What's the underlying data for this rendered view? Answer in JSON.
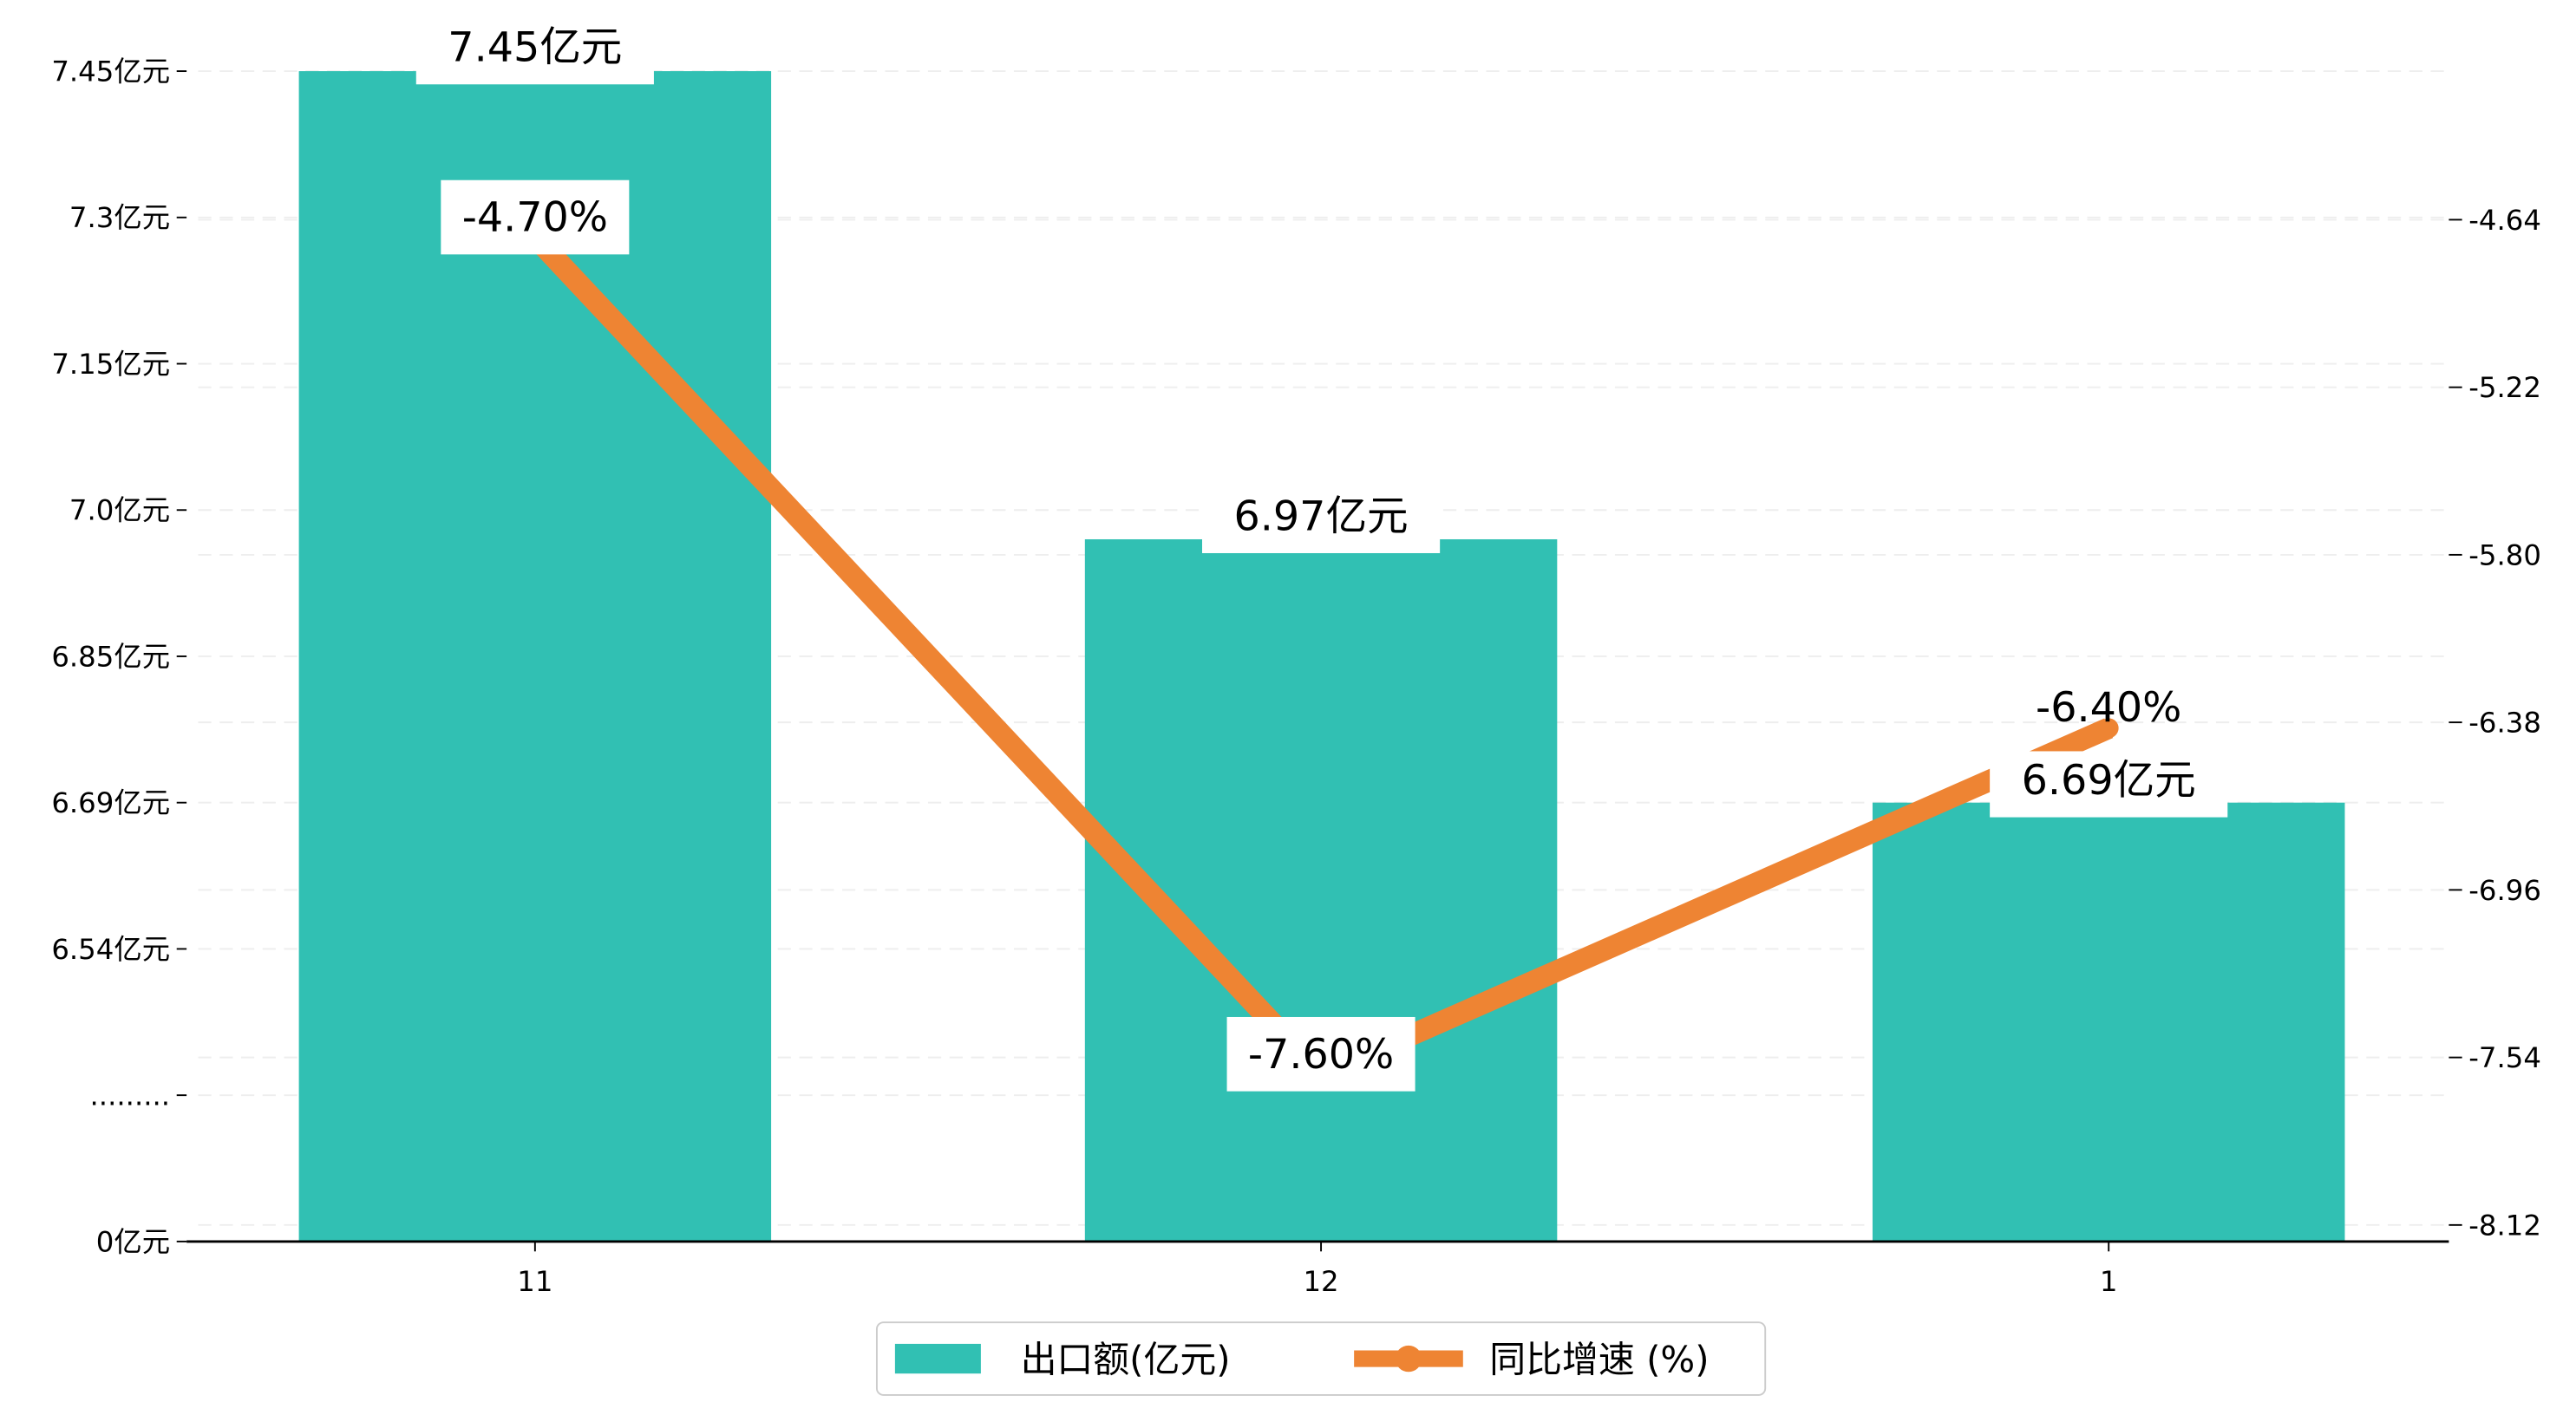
{
  "chart_data": {
    "type": "bar+line",
    "categories": [
      "11",
      "12",
      "1"
    ],
    "series": [
      {
        "name": "出口额(亿元)",
        "type": "bar",
        "axis": "left",
        "values": [
          7.45,
          6.97,
          6.69
        ],
        "labels": [
          "7.45亿元",
          "6.97亿元",
          "6.69亿元"
        ],
        "color": "#31c0b3"
      },
      {
        "name": "同比增速 (%)",
        "type": "line",
        "axis": "right",
        "values": [
          -4.7,
          -7.6,
          -6.4
        ],
        "labels": [
          "-4.70%",
          "-7.60%",
          "-6.40%"
        ],
        "color": "#ee8433"
      }
    ],
    "left_axis": {
      "tick_labels": [
        "7.45亿元",
        "7.3亿元",
        "7.15亿元",
        "7.0亿元",
        "6.85亿元",
        "6.69亿元",
        "6.54亿元",
        ".........",
        "0亿元"
      ],
      "tick_values": [
        7.45,
        7.3,
        7.15,
        7.0,
        6.85,
        6.69,
        6.54,
        null,
        0
      ]
    },
    "right_axis": {
      "tick_labels": [
        "-4.64",
        "-5.22",
        "-5.80",
        "-6.38",
        "-6.96",
        "-7.54",
        "-8.12"
      ],
      "tick_values": [
        -4.64,
        -5.22,
        -5.8,
        -6.38,
        -6.96,
        -7.54,
        -8.12
      ]
    },
    "grid": true,
    "legend": {
      "position": "bottom-center",
      "entries": [
        "出口额(亿元)",
        "同比增速 (%)"
      ]
    }
  }
}
